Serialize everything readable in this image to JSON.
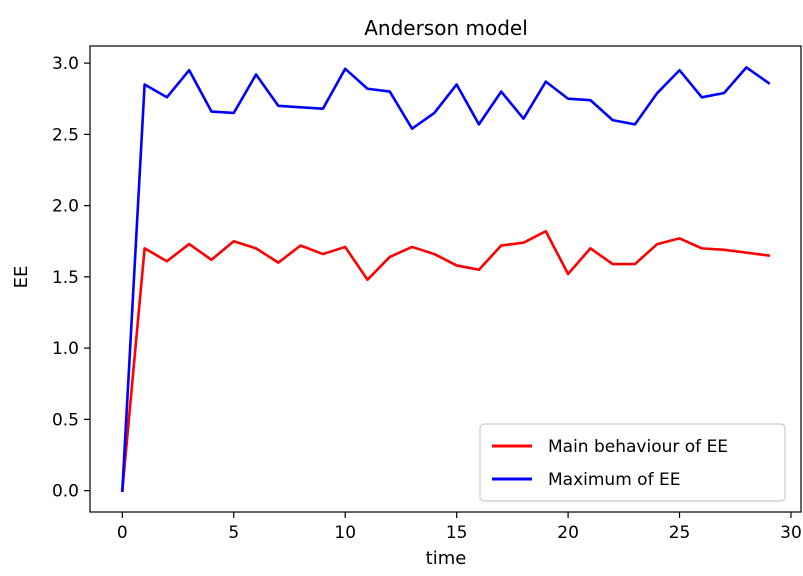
{
  "chart_data": {
    "type": "line",
    "title": "Anderson model",
    "xlabel": "time",
    "ylabel": "EE",
    "xlim": [
      -1.45,
      30.45
    ],
    "ylim": [
      -0.15,
      3.12
    ],
    "xticks": [
      0,
      5,
      10,
      15,
      20,
      25,
      30
    ],
    "yticks": [
      0.0,
      0.5,
      1.0,
      1.5,
      2.0,
      2.5,
      3.0
    ],
    "xtick_labels": [
      "0",
      "5",
      "10",
      "15",
      "20",
      "25",
      "30"
    ],
    "ytick_labels": [
      "0.0",
      "0.5",
      "1.0",
      "1.5",
      "2.0",
      "2.5",
      "3.0"
    ],
    "grid": false,
    "legend_position": "lower right",
    "x": [
      0,
      1,
      2,
      3,
      4,
      5,
      6,
      7,
      8,
      9,
      10,
      11,
      12,
      13,
      14,
      15,
      16,
      17,
      18,
      19,
      20,
      21,
      22,
      23,
      24,
      25,
      26,
      27,
      28,
      29
    ],
    "series": [
      {
        "name": "Main behaviour of EE",
        "color": "#ff0000",
        "values": [
          0.0,
          1.7,
          1.61,
          1.73,
          1.62,
          1.75,
          1.7,
          1.6,
          1.72,
          1.66,
          1.71,
          1.48,
          1.64,
          1.71,
          1.66,
          1.58,
          1.55,
          1.72,
          1.74,
          1.82,
          1.52,
          1.7,
          1.59,
          1.59,
          1.73,
          1.77,
          1.7,
          1.69,
          1.67,
          1.65
        ]
      },
      {
        "name": "Maximum of EE",
        "color": "#0000ff",
        "values": [
          0.0,
          2.85,
          2.76,
          2.95,
          2.66,
          2.65,
          2.92,
          2.7,
          2.69,
          2.68,
          2.96,
          2.82,
          2.8,
          2.54,
          2.65,
          2.85,
          2.57,
          2.8,
          2.61,
          2.87,
          2.75,
          2.74,
          2.6,
          2.57,
          2.79,
          2.95,
          2.76,
          2.79,
          2.97,
          2.86
        ]
      }
    ]
  }
}
